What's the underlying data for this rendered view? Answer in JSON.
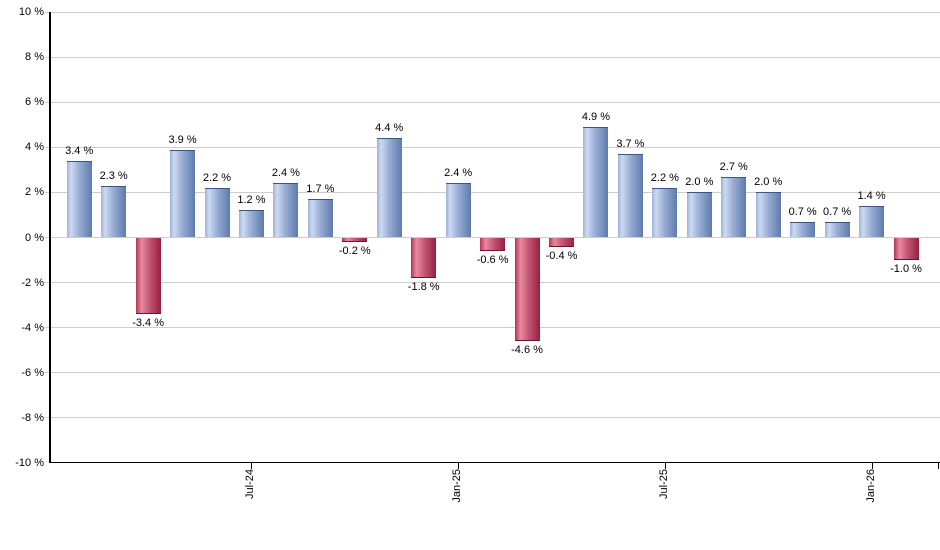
{
  "chart_data": {
    "type": "bar",
    "title": "",
    "xlabel": "",
    "ylabel": "",
    "grid": true,
    "ylim": [
      -10,
      10
    ],
    "values": [
      3.4,
      2.3,
      -3.4,
      3.9,
      2.2,
      1.2,
      2.4,
      1.7,
      -0.2,
      4.4,
      -1.8,
      2.4,
      -0.6,
      -4.6,
      -0.4,
      4.9,
      3.7,
      2.2,
      2.0,
      2.7,
      2.0,
      0.7,
      0.7,
      1.4,
      -1.0
    ],
    "value_labels": [
      "3.4 %",
      "2.3 %",
      "-3.4 %",
      "3.9 %",
      "2.2 %",
      "1.2 %",
      "2.4 %",
      "1.7 %",
      "-0.2 %",
      "4.4 %",
      "-1.8 %",
      "2.4 %",
      "-0.6 %",
      "-4.6 %",
      "-0.4 %",
      "4.9 %",
      "3.7 %",
      "2.2 %",
      "2.0 %",
      "2.7 %",
      "2.0 %",
      "0.7 %",
      "0.7 %",
      "1.4 %",
      "-1.0 %"
    ],
    "x_ticks": [
      {
        "label": "Jul-24",
        "bar_index": 5
      },
      {
        "label": "Jan-25",
        "bar_index": 11
      },
      {
        "label": "Jul-25",
        "bar_index": 17
      },
      {
        "label": "Jan-26",
        "bar_index": 23
      }
    ],
    "y_ticks": [
      {
        "value": 10,
        "label": "10 %"
      },
      {
        "value": 8,
        "label": "8 %"
      },
      {
        "value": 6,
        "label": "6 %"
      },
      {
        "value": 4,
        "label": "4 %"
      },
      {
        "value": 2,
        "label": "2 %"
      },
      {
        "value": 0,
        "label": "0 %"
      },
      {
        "value": -2,
        "label": "-2 %"
      },
      {
        "value": -4,
        "label": "-4 %"
      },
      {
        "value": -6,
        "label": "-6 %"
      },
      {
        "value": -8,
        "label": "-8 %"
      },
      {
        "value": -10,
        "label": "-10 %"
      }
    ],
    "colors": {
      "positive_gradient": [
        "#9db2d8",
        "#cdd9f1",
        "#97acd3",
        "#5e7aad"
      ],
      "negative_gradient": [
        "#b03355",
        "#e9899f",
        "#c25573",
        "#97203f"
      ],
      "gridline": "#cccccc",
      "axis": "#000000",
      "text": "#000000",
      "background": "#ffffff"
    }
  }
}
